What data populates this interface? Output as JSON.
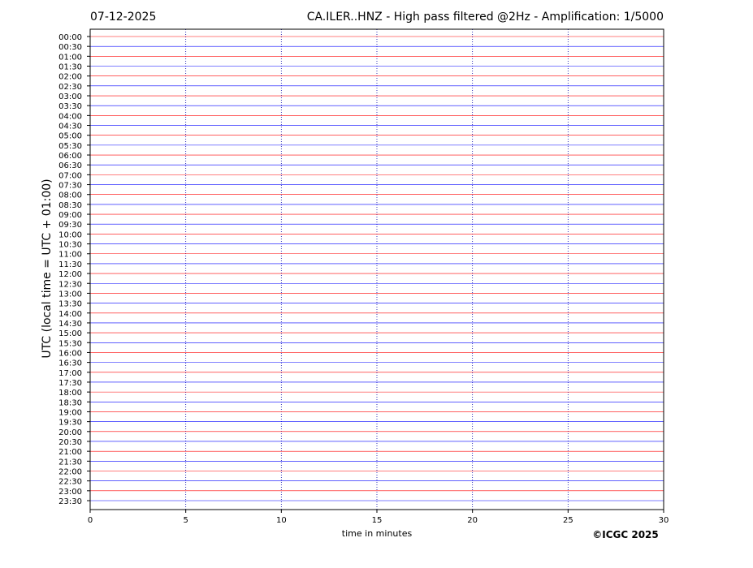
{
  "chart_data": {
    "type": "helicorder",
    "title": "CA.ILER..HNZ - High pass filtered @2Hz - Amplification: 1/5000",
    "date": "07-12-2025",
    "y_label": "UTC (local time = UTC + 01:00)",
    "x_label": "time in minutes",
    "credit": "©ICGC 2025",
    "categories": [
      "00:00",
      "00:30",
      "01:00",
      "01:30",
      "02:00",
      "02:30",
      "03:00",
      "03:30",
      "04:00",
      "04:30",
      "05:00",
      "05:30",
      "06:00",
      "06:30",
      "07:00",
      "07:30",
      "08:00",
      "08:30",
      "09:00",
      "09:30",
      "10:00",
      "10:30",
      "11:00",
      "11:30",
      "12:00",
      "12:30",
      "13:00",
      "13:30",
      "14:00",
      "14:30",
      "15:00",
      "15:30",
      "16:00",
      "16:30",
      "17:00",
      "17:30",
      "18:00",
      "18:30",
      "19:00",
      "19:30",
      "20:00",
      "20:30",
      "21:00",
      "21:30",
      "22:00",
      "22:30",
      "23:00",
      "23:30"
    ],
    "colors": [
      "#ff0000",
      "#0000ff"
    ],
    "xlim": [
      0,
      30
    ],
    "xticks": [
      0,
      5,
      10,
      15,
      20,
      25,
      30
    ],
    "grid": true
  }
}
